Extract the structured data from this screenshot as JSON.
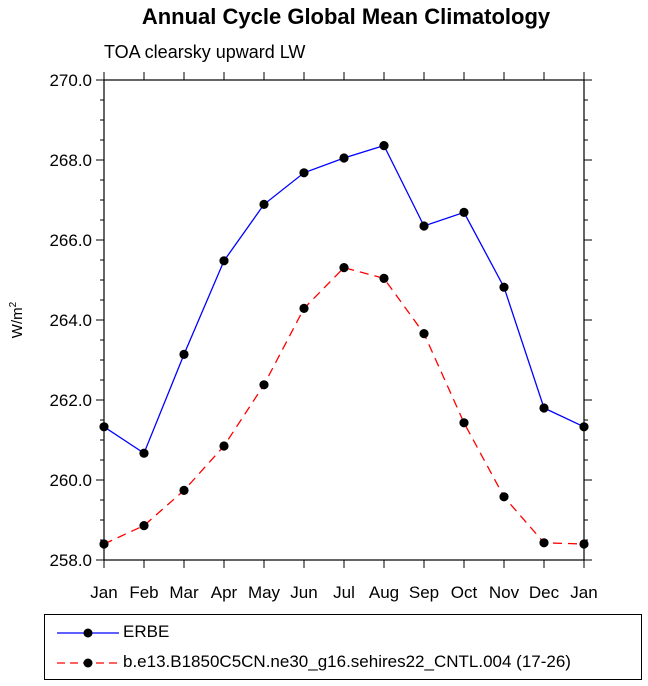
{
  "chart_data": {
    "type": "line",
    "title": "Annual Cycle Global Mean Climatology",
    "subtitle": "TOA clearsky upward LW",
    "xlabel": "",
    "ylabel_base": "W/m",
    "ylabel_sup": "2",
    "categories": [
      "Jan",
      "Feb",
      "Mar",
      "Apr",
      "May",
      "Jun",
      "Jul",
      "Aug",
      "Sep",
      "Oct",
      "Nov",
      "Dec",
      "Jan"
    ],
    "ylim": [
      258.0,
      270.0
    ],
    "yticks": [
      "258.0",
      "260.0",
      "262.0",
      "264.0",
      "266.0",
      "268.0",
      "270.0"
    ],
    "ytick_values": [
      258,
      260,
      262,
      264,
      266,
      268,
      270
    ],
    "grid": false,
    "legend_position": "bottom",
    "series": [
      {
        "name": "ERBE",
        "color": "#0000ff",
        "style": "solid",
        "values": [
          261.33,
          260.67,
          263.14,
          265.48,
          266.89,
          267.68,
          268.05,
          268.36,
          266.35,
          266.69,
          264.82,
          261.8,
          261.33
        ]
      },
      {
        "name": "b.e13.B1850C5CN.ne30_g16.sehires22_CNTL.004 (17-26)",
        "color": "#ff0000",
        "style": "dashed",
        "values": [
          258.4,
          258.86,
          259.74,
          260.85,
          262.38,
          264.29,
          265.31,
          265.04,
          263.66,
          261.43,
          259.58,
          258.43,
          258.4
        ]
      }
    ]
  }
}
